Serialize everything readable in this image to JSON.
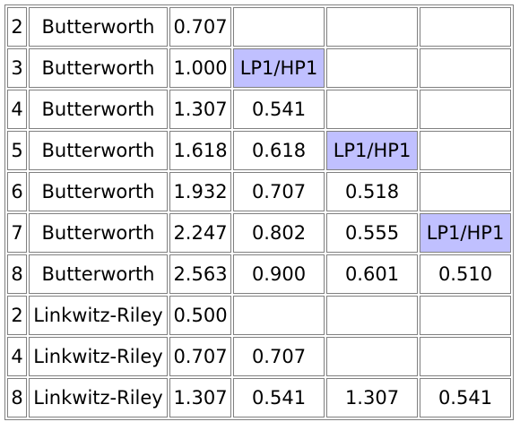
{
  "table": {
    "highlight_color": "#c0c0ff",
    "highlight_label": "LP1/HP1",
    "rows": [
      {
        "order": "2",
        "type": "Butterworth",
        "q1": "0.707",
        "q2": "",
        "q3": "",
        "q4": "",
        "hl": ""
      },
      {
        "order": "3",
        "type": "Butterworth",
        "q1": "1.000",
        "q2": "LP1/HP1",
        "q3": "",
        "q4": "",
        "hl": "q2"
      },
      {
        "order": "4",
        "type": "Butterworth",
        "q1": "1.307",
        "q2": "0.541",
        "q3": "",
        "q4": "",
        "hl": ""
      },
      {
        "order": "5",
        "type": "Butterworth",
        "q1": "1.618",
        "q2": "0.618",
        "q3": "LP1/HP1",
        "q4": "",
        "hl": "q3"
      },
      {
        "order": "6",
        "type": "Butterworth",
        "q1": "1.932",
        "q2": "0.707",
        "q3": "0.518",
        "q4": "",
        "hl": ""
      },
      {
        "order": "7",
        "type": "Butterworth",
        "q1": "2.247",
        "q2": "0.802",
        "q3": "0.555",
        "q4": "LP1/HP1",
        "hl": "q4"
      },
      {
        "order": "8",
        "type": "Butterworth",
        "q1": "2.563",
        "q2": "0.900",
        "q3": "0.601",
        "q4": "0.510",
        "hl": ""
      },
      {
        "order": "2",
        "type": "Linkwitz-Riley",
        "q1": "0.500",
        "q2": "",
        "q3": "",
        "q4": "",
        "hl": ""
      },
      {
        "order": "4",
        "type": "Linkwitz-Riley",
        "q1": "0.707",
        "q2": "0.707",
        "q3": "",
        "q4": "",
        "hl": ""
      },
      {
        "order": "8",
        "type": "Linkwitz-Riley",
        "q1": "1.307",
        "q2": "0.541",
        "q3": "1.307",
        "q4": "0.541",
        "hl": ""
      }
    ]
  }
}
